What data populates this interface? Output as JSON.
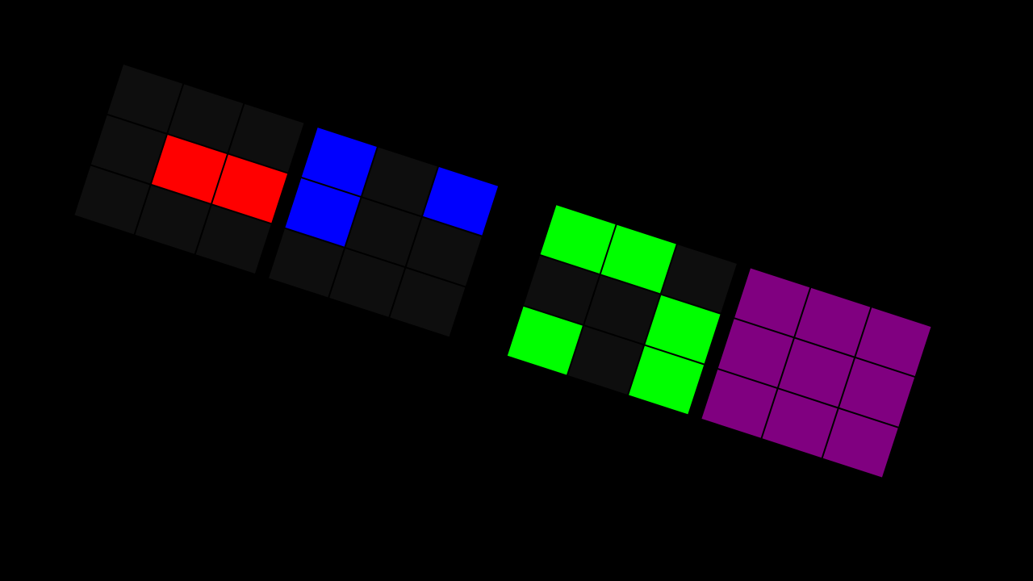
{
  "palette": {
    "0": "#0e0e0e",
    "1": "#ff0000",
    "2": "#0000ff",
    "3": "#00ff00",
    "4": "#800080"
  },
  "grids": [
    {
      "cells": [
        [
          0,
          0,
          0
        ],
        [
          0,
          1,
          1
        ],
        [
          0,
          0,
          0
        ]
      ]
    },
    {
      "cells": [
        [
          2,
          0,
          2
        ],
        [
          2,
          0,
          0
        ],
        [
          0,
          0,
          0
        ]
      ]
    },
    {
      "cells": [
        [
          3,
          3,
          0
        ],
        [
          0,
          0,
          3
        ],
        [
          3,
          0,
          3
        ]
      ]
    },
    {
      "cells": [
        [
          4,
          4,
          4
        ],
        [
          4,
          4,
          4
        ],
        [
          4,
          4,
          4
        ]
      ]
    }
  ]
}
